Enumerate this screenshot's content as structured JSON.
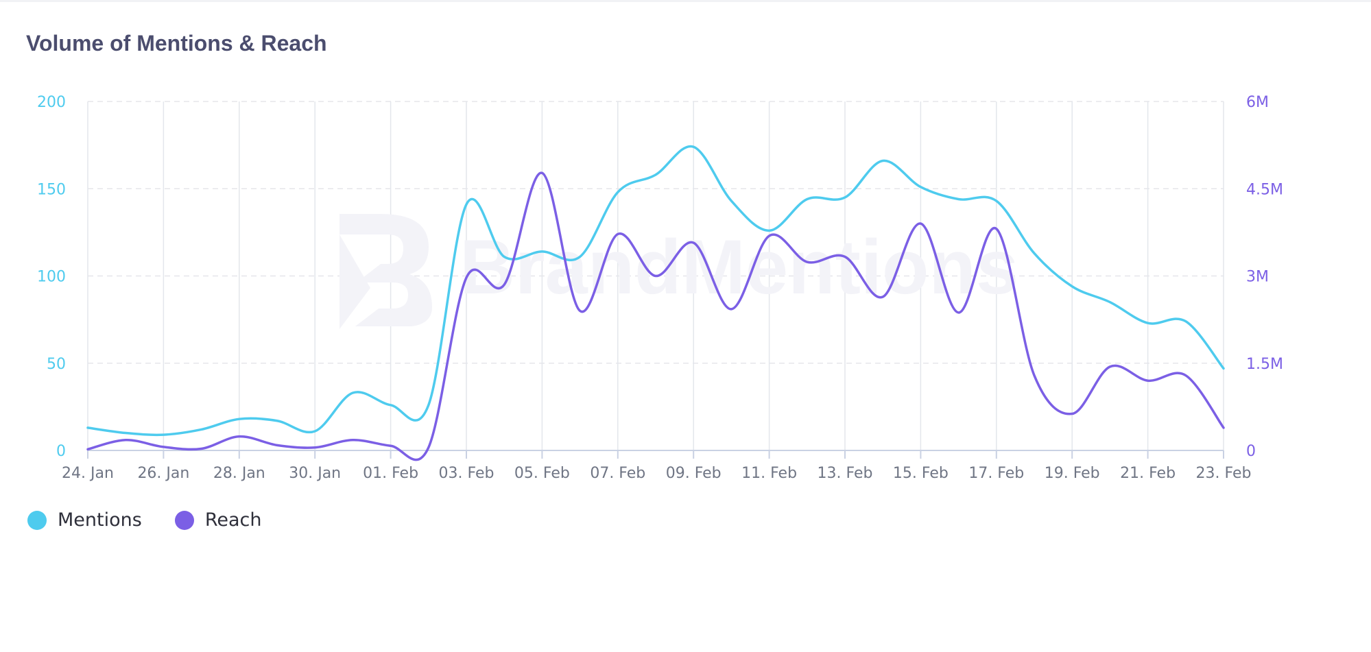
{
  "chart_data": {
    "type": "line",
    "title": "Volume of Mentions & Reach",
    "watermark": "BrandMentions",
    "x": [
      "24. Jan",
      "25. Jan",
      "26. Jan",
      "27. Jan",
      "28. Jan",
      "29. Jan",
      "30. Jan",
      "31. Jan",
      "01. Feb",
      "02. Feb",
      "03. Feb",
      "04. Feb",
      "05. Feb",
      "06. Feb",
      "07. Feb",
      "08. Feb",
      "09. Feb",
      "10. Feb",
      "11. Feb",
      "12. Feb",
      "13. Feb",
      "14. Feb",
      "15. Feb",
      "16. Feb",
      "17. Feb",
      "18. Feb",
      "19. Feb",
      "20. Feb",
      "21. Feb",
      "22. Feb",
      "23. Feb"
    ],
    "x_tick_labels": [
      "24. Jan",
      "26. Jan",
      "28. Jan",
      "30. Jan",
      "01. Feb",
      "03. Feb",
      "05. Feb",
      "07. Feb",
      "09. Feb",
      "11. Feb",
      "13. Feb",
      "15. Feb",
      "17. Feb",
      "19. Feb",
      "21. Feb",
      "23. Feb"
    ],
    "y_left": {
      "ticks": [
        "0",
        "50",
        "100",
        "150",
        "200"
      ],
      "lim": [
        0,
        200
      ],
      "color": "#4ecbee"
    },
    "y_right": {
      "ticks": [
        "0",
        "1.5M",
        "3M",
        "4.5M",
        "6M"
      ],
      "lim": [
        0,
        6000000
      ],
      "color": "#7b5fe5"
    },
    "grid": true,
    "legend_position": "bottom-left",
    "series": [
      {
        "name": "Mentions",
        "axis": "left",
        "color": "#4ecbee",
        "values": [
          13,
          10,
          9,
          12,
          18,
          17,
          11,
          33,
          26,
          26,
          141,
          111,
          114,
          111,
          148,
          158,
          174,
          143,
          126,
          144,
          145,
          166,
          151,
          144,
          143,
          113,
          94,
          85,
          73,
          74,
          47
        ]
      },
      {
        "name": "Reach",
        "axis": "right",
        "color": "#7b5fe5",
        "values": [
          20000,
          180000,
          60000,
          30000,
          240000,
          90000,
          50000,
          180000,
          80000,
          50000,
          2970000,
          2850000,
          4770000,
          2400000,
          3720000,
          3000000,
          3570000,
          2430000,
          3690000,
          3240000,
          3330000,
          2640000,
          3900000,
          2370000,
          3810000,
          1290000,
          630000,
          1440000,
          1200000,
          1290000,
          390000
        ]
      }
    ]
  }
}
